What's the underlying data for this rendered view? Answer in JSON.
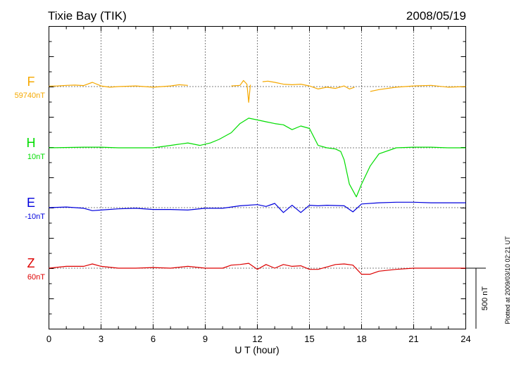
{
  "chart_data": {
    "type": "line",
    "title": "Tixie Bay (TIK)",
    "date": "2008/05/19",
    "xlabel": "U T (hour)",
    "xlim": [
      0,
      24
    ],
    "xticks": [
      "0",
      "3",
      "6",
      "9",
      "12",
      "15",
      "18",
      "21",
      "24"
    ],
    "scale_label": "500 nT",
    "footer": "Plotted at 2009/03/10 02:21 UT",
    "grid": true,
    "series": [
      {
        "name": "F",
        "baseline": "59740nT",
        "color": "#f5a800",
        "values": [
          [
            0,
            -4
          ],
          [
            0.5,
            -5
          ],
          [
            1,
            -10
          ],
          [
            1.5,
            -12
          ],
          [
            2,
            -8
          ],
          [
            2.5,
            -35
          ],
          [
            3,
            -5
          ],
          [
            3.5,
            5
          ],
          [
            4,
            0
          ],
          [
            5,
            -5
          ],
          [
            6,
            5
          ],
          [
            7,
            -5
          ],
          [
            7.5,
            -15
          ],
          [
            8,
            -10
          ],
          [
            8.3,
            null
          ],
          [
            9.7,
            null
          ],
          [
            10,
            -15
          ],
          [
            10.3,
            null
          ],
          [
            10.5,
            -5
          ],
          [
            11,
            -10
          ],
          [
            11.2,
            -50
          ],
          [
            11.4,
            -20
          ],
          [
            11.5,
            130
          ],
          [
            11.6,
            -15
          ],
          [
            12,
            null
          ],
          [
            12.3,
            -40
          ],
          [
            12.6,
            -45
          ],
          [
            13,
            -35
          ],
          [
            13.5,
            -20
          ],
          [
            14,
            -15
          ],
          [
            14.5,
            -20
          ],
          [
            15,
            -5
          ],
          [
            15.5,
            20
          ],
          [
            16,
            5
          ],
          [
            16.5,
            15
          ],
          [
            17,
            -5
          ],
          [
            17.3,
            20
          ],
          [
            17.6,
            5
          ],
          [
            18,
            null
          ],
          [
            18.5,
            40
          ],
          [
            19,
            25
          ],
          [
            20,
            5
          ],
          [
            21,
            -5
          ],
          [
            22,
            -10
          ],
          [
            23,
            5
          ],
          [
            24,
            0
          ]
        ]
      },
      {
        "name": "H",
        "baseline": "10nT",
        "color": "#00dd00",
        "values": [
          [
            0,
            0
          ],
          [
            2,
            -5
          ],
          [
            3,
            -5
          ],
          [
            4,
            0
          ],
          [
            5,
            0
          ],
          [
            6,
            0
          ],
          [
            7,
            -20
          ],
          [
            8,
            -40
          ],
          [
            8.7,
            -20
          ],
          [
            9.3,
            -40
          ],
          [
            9.8,
            -70
          ],
          [
            10.5,
            -125
          ],
          [
            11,
            -200
          ],
          [
            11.5,
            -245
          ],
          [
            12,
            -230
          ],
          [
            12.5,
            -215
          ],
          [
            13,
            -200
          ],
          [
            13.5,
            -190
          ],
          [
            14,
            -150
          ],
          [
            14.5,
            -180
          ],
          [
            15,
            -160
          ],
          [
            15.5,
            -20
          ],
          [
            16,
            0
          ],
          [
            16.5,
            10
          ],
          [
            16.8,
            30
          ],
          [
            17,
            100
          ],
          [
            17.3,
            300
          ],
          [
            17.7,
            405
          ],
          [
            18,
            300
          ],
          [
            18.5,
            150
          ],
          [
            19,
            50
          ],
          [
            20,
            0
          ],
          [
            21,
            -5
          ],
          [
            22,
            -5
          ],
          [
            23,
            0
          ],
          [
            24,
            0
          ]
        ]
      },
      {
        "name": "E",
        "baseline": "-10nT",
        "color": "#0000dd",
        "values": [
          [
            0,
            0
          ],
          [
            1,
            -5
          ],
          [
            2,
            5
          ],
          [
            2.5,
            25
          ],
          [
            3,
            20
          ],
          [
            4,
            10
          ],
          [
            5,
            5
          ],
          [
            6,
            15
          ],
          [
            7,
            15
          ],
          [
            8,
            20
          ],
          [
            9,
            5
          ],
          [
            10,
            5
          ],
          [
            10.5,
            -5
          ],
          [
            11,
            -15
          ],
          [
            12,
            -25
          ],
          [
            12.5,
            -10
          ],
          [
            13,
            -35
          ],
          [
            13.5,
            40
          ],
          [
            14,
            -20
          ],
          [
            14.5,
            40
          ],
          [
            15,
            -20
          ],
          [
            15.5,
            -15
          ],
          [
            16,
            -20
          ],
          [
            17,
            -15
          ],
          [
            17.5,
            35
          ],
          [
            18,
            -30
          ],
          [
            19,
            -40
          ],
          [
            20,
            -45
          ],
          [
            21,
            -45
          ],
          [
            22,
            -40
          ],
          [
            23,
            -40
          ],
          [
            24,
            -40
          ]
        ]
      },
      {
        "name": "Z",
        "baseline": "60nT",
        "color": "#dd0000",
        "values": [
          [
            0,
            0
          ],
          [
            1,
            -15
          ],
          [
            2,
            -15
          ],
          [
            2.5,
            -35
          ],
          [
            3,
            -15
          ],
          [
            4,
            0
          ],
          [
            5,
            0
          ],
          [
            6,
            -5
          ],
          [
            7,
            0
          ],
          [
            8,
            -15
          ],
          [
            9,
            0
          ],
          [
            10,
            0
          ],
          [
            10.5,
            -25
          ],
          [
            11,
            -30
          ],
          [
            11.5,
            -40
          ],
          [
            12,
            10
          ],
          [
            12.5,
            -30
          ],
          [
            13,
            0
          ],
          [
            13.5,
            -30
          ],
          [
            14,
            -15
          ],
          [
            14.5,
            -20
          ],
          [
            15,
            10
          ],
          [
            15.5,
            10
          ],
          [
            16,
            -10
          ],
          [
            16.5,
            -30
          ],
          [
            17,
            -35
          ],
          [
            17.5,
            -25
          ],
          [
            18,
            50
          ],
          [
            18.5,
            50
          ],
          [
            19,
            25
          ],
          [
            20,
            10
          ],
          [
            21,
            0
          ],
          [
            22,
            0
          ],
          [
            23,
            0
          ],
          [
            24,
            0
          ]
        ]
      }
    ]
  }
}
